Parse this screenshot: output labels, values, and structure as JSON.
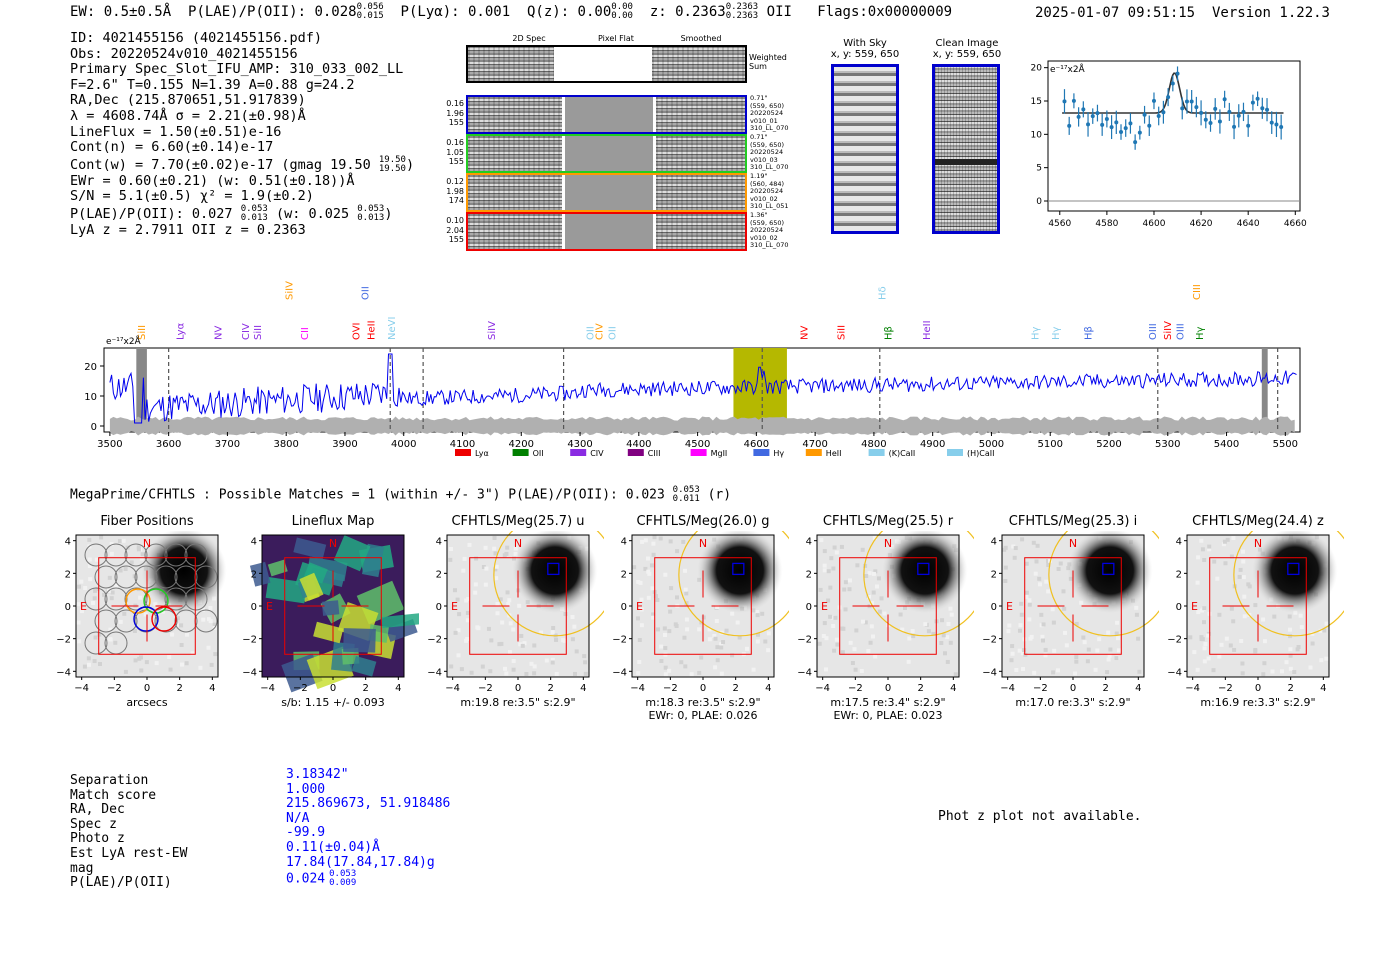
{
  "header": {
    "ew": "EW: 0.5±0.5Å",
    "plae_label": "P(LAE)/P(OII): 0.028",
    "plae_hi": "0.056",
    "plae_lo": "0.015",
    "plya": "P(Lyα): 0.001",
    "qz_label": "Q(z): 0.00",
    "qz_hi": "0.00",
    "qz_lo": "0.00",
    "z_label": "z: 0.2363",
    "z_hi": "0.2363",
    "z_lo": "0.2363",
    "z_line": "OII",
    "flags": "Flags:0x00000009",
    "datetime": "2025-01-07 09:51:15",
    "version": "Version 1.22.3"
  },
  "info": {
    "id": "ID: 4021455156 (4021455156.pdf)",
    "obs": "Obs: 20220524v010_4021455156",
    "primary": "Primary Spec_Slot_IFU_AMP: 310_033_002_LL",
    "params": "F=2.6\"  T=0.155  N=1.39  A=0.88  g=24.2",
    "radec": "RA,Dec (215.870651,51.917839)",
    "lambda": "λ = 4608.74Å  σ = 2.21(±0.98)Å",
    "lineflux": "LineFlux = 1.50(±0.51)e-16",
    "contn": "Cont(n) = 6.60(±0.14)e-17",
    "contw": "Cont(w) = 7.70(±0.02)e-17 (gmag 19.50",
    "contw_hi": "19.50",
    "contw_lo": "19.50",
    "contw_end": ")",
    "ewr": "EWr = 0.60(±0.21) (w: 0.51(±0.18))Å",
    "sn": "S/N = 5.1(±0.5)  χ² = 1.9(±0.2)",
    "plae": "P(LAE)/P(OII): 0.027",
    "plae_hi": "0.053",
    "plae_lo": "0.013",
    "plae_w": "(w: 0.025",
    "plae_w_hi": "0.053",
    "plae_w_lo": "0.013",
    "plae_end": ")",
    "lyaz": "LyA z = 2.7911  OII z = 0.2363"
  },
  "cutouts": {
    "col_2d": "2D Spec",
    "col_flat": "Pixel Flat",
    "col_smooth": "Smoothed",
    "weighted": "Weighted Sum",
    "rows": [
      {
        "left": [
          "0.16",
          "1.96",
          "155"
        ],
        "right": [
          "0.71\"",
          "(559, 650)",
          "20220524",
          "v010_01",
          "310_LL_070"
        ],
        "color": "#0000cc"
      },
      {
        "left": [
          "0.16",
          "1.05",
          "155"
        ],
        "right": [
          "0.71\"",
          "(559, 650)",
          "20220524",
          "v010_03",
          "310_LL_070"
        ],
        "color": "#22cc22"
      },
      {
        "left": [
          "0.12",
          "1.98",
          "174"
        ],
        "right": [
          "1.19\"",
          "(560, 484)",
          "20220524",
          "v010_02",
          "310_LL_051"
        ],
        "color": "#ff9900"
      },
      {
        "left": [
          "0.10",
          "2.04",
          "155"
        ],
        "right": [
          "1.36\"",
          "(559, 650)",
          "20220524",
          "v010_02",
          "310_LL_070"
        ],
        "color": "#ee0000"
      }
    ],
    "with_sky": "With Sky",
    "with_sky_xy": "x, y: 559, 650",
    "clean": "Clean Image",
    "clean_xy": "x, y: 559, 650"
  },
  "zoom_plot": {
    "ylabel": "e⁻¹⁷x2Å",
    "yticks": [
      "20",
      "15",
      "10",
      "5",
      "0"
    ],
    "xticks": [
      "4560",
      "4580",
      "4600",
      "4620",
      "4640",
      "4660"
    ]
  },
  "spectrum": {
    "ylabel": "e⁻¹⁷x2Å",
    "yticks": [
      "20",
      "10",
      "0"
    ],
    "xticks": [
      "3500",
      "3600",
      "3700",
      "3800",
      "3900",
      "4000",
      "4100",
      "4200",
      "4300",
      "4400",
      "4500",
      "4600",
      "4700",
      "4800",
      "4900",
      "5000",
      "5100",
      "5200",
      "5300",
      "5400",
      "5500"
    ],
    "lines": [
      {
        "label": "SiII",
        "color": "#ff9900"
      },
      {
        "label": "Lyα",
        "color": "#8a2be2"
      },
      {
        "label": "NV",
        "color": "#8a2be2"
      },
      {
        "label": "CIV",
        "color": "#8a2be2"
      },
      {
        "label": "SiII",
        "color": "#8a2be2"
      },
      {
        "label": "CII",
        "color": "#ff00ff"
      },
      {
        "label": "SiIV",
        "color": "#ff9900"
      },
      {
        "label": "OVI",
        "color": "#ff0000"
      },
      {
        "label": "OII",
        "color": "#4169e1"
      },
      {
        "label": "HeII",
        "color": "#ff0000"
      },
      {
        "label": "NeVI",
        "color": "#87ceeb"
      },
      {
        "label": "SiIV",
        "color": "#8a2be2"
      },
      {
        "label": "OII",
        "color": "#87ceeb"
      },
      {
        "label": "CIV",
        "color": "#ff9900"
      },
      {
        "label": "OII",
        "color": "#87ceeb"
      },
      {
        "label": "NV",
        "color": "#ff0000"
      },
      {
        "label": "Hδ",
        "color": "#87ceeb"
      },
      {
        "label": "SiII",
        "color": "#ff0000"
      },
      {
        "label": "Hβ",
        "color": "#008000"
      },
      {
        "label": "HeII",
        "color": "#8a2be2"
      },
      {
        "label": "Hγ",
        "color": "#87ceeb"
      },
      {
        "label": "Hγ",
        "color": "#87ceeb"
      },
      {
        "label": "Hβ",
        "color": "#4169e1"
      },
      {
        "label": "OIII",
        "color": "#4169e1"
      },
      {
        "label": "SiIV",
        "color": "#ff0000"
      },
      {
        "label": "OIII",
        "color": "#4169e1"
      },
      {
        "label": "CIII",
        "color": "#ff9900"
      },
      {
        "label": "Hγ",
        "color": "#008000"
      }
    ],
    "legend": [
      {
        "label": "Lyα",
        "color": "#ee0000"
      },
      {
        "label": "OII",
        "color": "#008000"
      },
      {
        "label": "CIV",
        "color": "#8a2be2"
      },
      {
        "label": "CIII",
        "color": "#800080"
      },
      {
        "label": "MgII",
        "color": "#ff00ff"
      },
      {
        "label": "Hγ",
        "color": "#4169e1"
      },
      {
        "label": "HeII",
        "color": "#ff9900"
      },
      {
        "label": "(K)CaII",
        "color": "#87ceeb"
      },
      {
        "label": "(H)CaII",
        "color": "#87ceeb"
      }
    ]
  },
  "matches": {
    "title": "MegaPrime/CFHTLS : Possible Matches = 1 (within +/- 3\")  P(LAE)/P(OII): 0.023",
    "hi": "0.053",
    "lo": "0.011",
    "band": "(r)"
  },
  "panels": [
    {
      "title": "Fiber Positions",
      "cap1": "arcsecs",
      "cap2": ""
    },
    {
      "title": "Lineflux Map",
      "cap1": "s/b: 1.15 +/- 0.093",
      "cap2": ""
    },
    {
      "title": "CFHTLS/Meg(25.7) u",
      "cap1": "m:19.8  re:3.5\"  s:2.9\"",
      "cap2": ""
    },
    {
      "title": "CFHTLS/Meg(26.0) g",
      "cap1": "m:18.3  re:3.5\"  s:2.9\"",
      "cap2": "EWr: 0, PLAE: 0.026"
    },
    {
      "title": "CFHTLS/Meg(25.5) r",
      "cap1": "m:17.5  re:3.4\"  s:2.9\"",
      "cap2": "EWr: 0, PLAE: 0.023"
    },
    {
      "title": "CFHTLS/Meg(25.3) i",
      "cap1": "m:17.0  re:3.3\"  s:2.9\"",
      "cap2": ""
    },
    {
      "title": "CFHTLS/Meg(24.4) z",
      "cap1": "m:16.9  re:3.3\"  s:2.9\"",
      "cap2": ""
    }
  ],
  "panel_axis": {
    "yticks": [
      "4",
      "2",
      "0",
      "−2",
      "−4"
    ],
    "xticks": [
      "−4",
      "−2",
      "0",
      "2",
      "4"
    ],
    "north": "N",
    "east": "E"
  },
  "table": {
    "labels": [
      "Separation",
      "Match score",
      "RA, Dec",
      "Spec z",
      "Photo z",
      "Est LyA rest-EW",
      "mag",
      "P(LAE)/P(OII)"
    ],
    "values": [
      "3.18342\"",
      "1.000",
      "215.869673, 51.918486",
      "N/A",
      "-99.9",
      "0.11(±0.04)Å",
      "17.84(17.84,17.84)g",
      "0.024"
    ],
    "plae_hi": "0.053",
    "plae_lo": "0.009"
  },
  "photz_msg": "Phot z plot not available.",
  "colors": {
    "blue": "#0000ff",
    "red": "#ee0000",
    "olive": "#b5b800",
    "grey": "#aaaaaa",
    "zfit": "#1f77b4"
  }
}
